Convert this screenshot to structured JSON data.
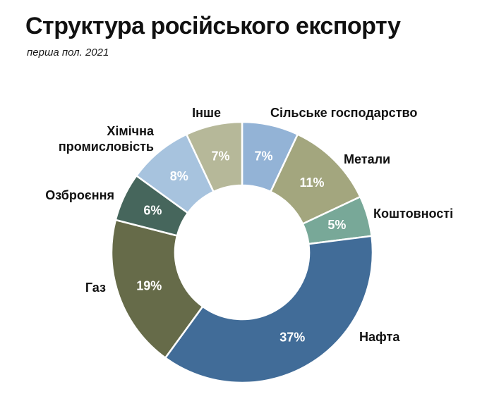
{
  "chart_data": {
    "type": "pie",
    "title": "Структура російського експорту",
    "subtitle": "перша пол. 2021",
    "slices": [
      {
        "label": "Сільське господарство",
        "value": 7,
        "display": "7%",
        "color": "#93b3d6"
      },
      {
        "label": "Метали",
        "value": 11,
        "display": "11%",
        "color": "#a3a67e"
      },
      {
        "label": "Коштовності",
        "value": 5,
        "display": "5%",
        "color": "#78a898"
      },
      {
        "label": "Нафта",
        "value": 37,
        "display": "37%",
        "color": "#416c98"
      },
      {
        "label": "Газ",
        "value": 19,
        "display": "19%",
        "color": "#666b49"
      },
      {
        "label": "Озброєння",
        "value": 6,
        "display": "6%",
        "color": "#46665c"
      },
      {
        "label": "Хімічна промисловість",
        "value": 8,
        "display": "8%",
        "color": "#a7c3de"
      },
      {
        "label": "Інше",
        "value": 7,
        "display": "7%",
        "color": "#b6b899"
      }
    ]
  }
}
